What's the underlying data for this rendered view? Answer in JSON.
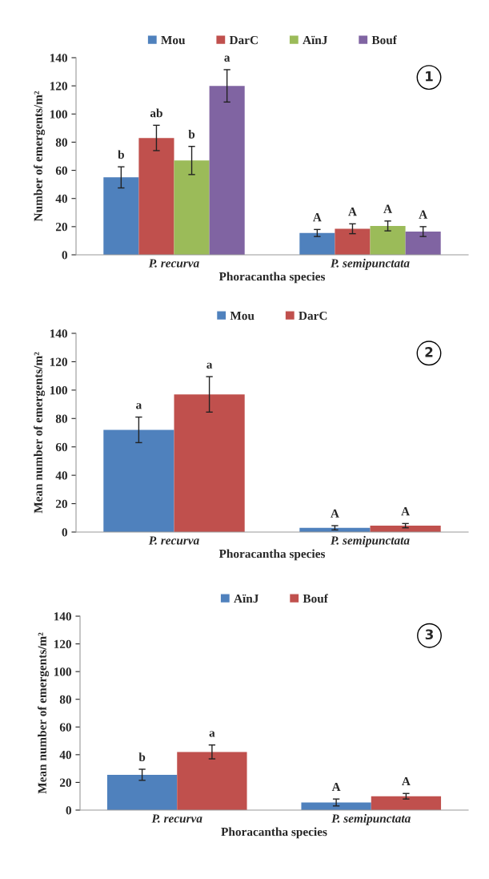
{
  "chart_data": [
    {
      "type": "bar",
      "categories": [
        "P. recurva",
        "P. semipunctata"
      ],
      "xlabel": "Phoracantha species",
      "ylabel": "Number of emergents/m²",
      "ylim": [
        0,
        140
      ],
      "yticks": [
        0,
        20,
        40,
        60,
        80,
        100,
        120,
        140
      ],
      "legend": "top",
      "grid": false,
      "annotations": [
        "1"
      ],
      "series": [
        {
          "name": "Mou",
          "color": "#4f81bd",
          "values": [
            55,
            15.5
          ],
          "errors": [
            7.5,
            2.5
          ],
          "value_labels": [
            "b",
            "A"
          ]
        },
        {
          "name": "DarC",
          "color": "#c0504d",
          "values": [
            83,
            18.5
          ],
          "errors": [
            9,
            3.5
          ],
          "value_labels": [
            "ab",
            "A"
          ]
        },
        {
          "name": "AïnJ",
          "color": "#9bbb59",
          "values": [
            67,
            20.5
          ],
          "errors": [
            10,
            3.5
          ],
          "value_labels": [
            "b",
            "A"
          ]
        },
        {
          "name": "Bouf",
          "color": "#8064a2",
          "values": [
            120,
            16.5
          ],
          "errors": [
            11.5,
            3.5
          ],
          "value_labels": [
            "a",
            "A"
          ]
        }
      ]
    },
    {
      "type": "bar",
      "categories": [
        "P. recurva",
        "P. semipunctata"
      ],
      "xlabel": "Phoracantha species",
      "ylabel": "Mean number of emergents/m²",
      "ylim": [
        0,
        140
      ],
      "yticks": [
        0,
        20,
        40,
        60,
        80,
        100,
        120,
        140
      ],
      "legend": "top",
      "grid": false,
      "annotations": [
        "2"
      ],
      "series": [
        {
          "name": "Mou",
          "color": "#4f81bd",
          "values": [
            72,
            3
          ],
          "errors": [
            9,
            1.5
          ],
          "value_labels": [
            "a",
            "A"
          ]
        },
        {
          "name": "DarC",
          "color": "#c0504d",
          "values": [
            97,
            4.5
          ],
          "errors": [
            12.5,
            1.5
          ],
          "value_labels": [
            "a",
            "A"
          ]
        }
      ]
    },
    {
      "type": "bar",
      "categories": [
        "P. recurva",
        "P. semipunctata"
      ],
      "xlabel": "Phoracantha species",
      "ylabel": "Mean number of emergents/m²",
      "ylim": [
        0,
        140
      ],
      "yticks": [
        0,
        20,
        40,
        60,
        80,
        100,
        120,
        140
      ],
      "legend": "top",
      "grid": false,
      "annotations": [
        "3"
      ],
      "series": [
        {
          "name": "AïnJ",
          "color": "#4f81bd",
          "values": [
            25.5,
            5.5
          ],
          "errors": [
            4,
            2.5
          ],
          "value_labels": [
            "b",
            "A"
          ]
        },
        {
          "name": "Bouf",
          "color": "#c0504d",
          "values": [
            42,
            10
          ],
          "errors": [
            5,
            2
          ],
          "value_labels": [
            "a",
            "A"
          ]
        }
      ]
    }
  ]
}
